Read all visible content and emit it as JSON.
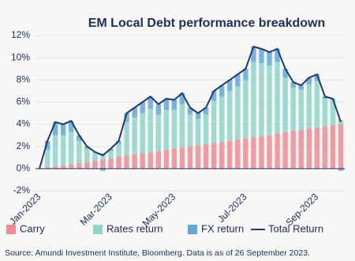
{
  "chart_data": {
    "type": "bar",
    "stacked": true,
    "title": "EM Local Debt performance breakdown",
    "source": "Source: Amundi Investment Institute, Bloomberg. Data is as of 26 September 2023.",
    "categories": [
      "Jan-2023",
      null,
      null,
      null,
      null,
      null,
      null,
      null,
      null,
      "Mar-2023",
      null,
      null,
      null,
      null,
      null,
      null,
      null,
      "May-2023",
      null,
      null,
      null,
      null,
      null,
      null,
      null,
      null,
      "Jul-2023",
      null,
      null,
      null,
      null,
      null,
      null,
      null,
      null,
      "Sep-2023",
      null,
      null,
      null
    ],
    "ylim": [
      -2,
      12
    ],
    "yticks": [
      {
        "value": -2,
        "label": "-2%"
      },
      {
        "value": 0,
        "label": "0%"
      },
      {
        "value": 2,
        "label": "2%"
      },
      {
        "value": 4,
        "label": "4%"
      },
      {
        "value": 6,
        "label": "6%"
      },
      {
        "value": 8,
        "label": "8%"
      },
      {
        "value": 10,
        "label": "10%"
      },
      {
        "value": 12,
        "label": "12%"
      }
    ],
    "grid": true,
    "legend": "bottom",
    "series": [
      {
        "name": "Carry",
        "color": "#ef8b93",
        "values": [
          0.0,
          0.1,
          0.2,
          0.3,
          0.4,
          0.5,
          0.6,
          0.7,
          0.8,
          0.9,
          1.1,
          1.2,
          1.3,
          1.4,
          1.5,
          1.6,
          1.7,
          1.8,
          1.9,
          2.0,
          2.1,
          2.2,
          2.3,
          2.4,
          2.5,
          2.6,
          2.7,
          2.8,
          2.9,
          3.0,
          3.2,
          3.3,
          3.4,
          3.5,
          3.6,
          3.7,
          3.8,
          3.9,
          4.0
        ]
      },
      {
        "name": "Rates return",
        "color": "#8fd5c9",
        "values": [
          0,
          1.6,
          2.8,
          2.7,
          2.9,
          2.0,
          1.2,
          0.8,
          0.6,
          0.7,
          1.1,
          3.0,
          3.3,
          3.6,
          3.9,
          3.3,
          3.6,
          3.5,
          3.9,
          2.9,
          2.4,
          2.7,
          3.8,
          4.1,
          4.5,
          4.8,
          5.3,
          6.8,
          6.6,
          6.3,
          6.4,
          4.9,
          3.9,
          3.6,
          4.0,
          4.2,
          2.5,
          2.3,
          0.4
        ]
      },
      {
        "name": "FX return",
        "color": "#5fa8d8",
        "values": [
          0.0,
          0.8,
          1.2,
          1.0,
          1.0,
          0.5,
          0.2,
          0.0,
          -0.2,
          0.2,
          0.3,
          0.8,
          0.9,
          1.0,
          1.1,
          0.9,
          1.0,
          0.9,
          1.0,
          0.6,
          0.5,
          0.6,
          0.9,
          1.0,
          1.0,
          1.1,
          1.0,
          1.4,
          1.3,
          1.2,
          1.2,
          0.8,
          0.5,
          0.4,
          0.6,
          0.6,
          0.2,
          0.1,
          -0.2
        ]
      },
      {
        "name": "Total Return",
        "type": "line",
        "color": "#1d3a6e",
        "values": [
          0,
          2.5,
          4.2,
          4.0,
          4.3,
          3.0,
          2.0,
          1.5,
          1.2,
          1.8,
          2.5,
          5.0,
          5.5,
          6.0,
          6.5,
          5.8,
          6.3,
          6.2,
          6.8,
          5.5,
          5.0,
          5.5,
          7.0,
          7.5,
          8.0,
          8.5,
          9.0,
          11.0,
          10.8,
          10.5,
          10.8,
          9.0,
          7.8,
          7.5,
          8.2,
          8.5,
          6.5,
          6.3,
          4.2
        ]
      }
    ]
  }
}
